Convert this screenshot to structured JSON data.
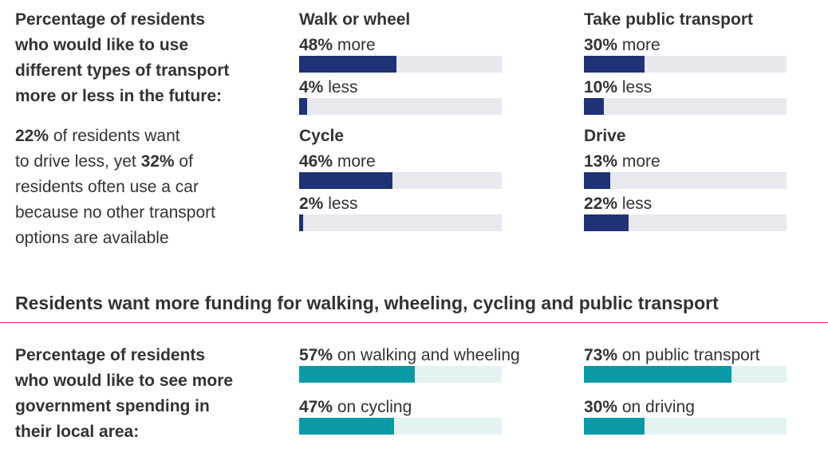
{
  "section1": {
    "heading_lines": [
      "Percentage of residents",
      "who would like to use",
      "different types of transport",
      "more or less in the future:"
    ],
    "note": {
      "pct1": "22%",
      "text1": " of residents want",
      "line2a": "to drive less, yet ",
      "pct2": "32%",
      "line2b": " of",
      "line3": "residents often use a car",
      "line4": "because no other transport",
      "line5": "options are available"
    }
  },
  "section2": {
    "title": "Residents want more funding for walking, wheeling, cycling and public transport",
    "heading_lines": [
      "Percentage of residents",
      "who would like to see more",
      "government spending in",
      "their local area:"
    ]
  },
  "colors": {
    "navy": "#1f3275",
    "navy_track": "#e8e8ef",
    "teal": "#0a9aa5",
    "teal_track": "#e3f3f4",
    "divider": "#cc2f7c"
  },
  "chart_data": [
    {
      "type": "bar",
      "groups": [
        {
          "title": "Walk or wheel",
          "bars": [
            {
              "value": 48,
              "pct": "48%",
              "text": " more"
            },
            {
              "value": 4,
              "pct": "4%",
              "text": " less"
            }
          ]
        },
        {
          "title": "Take public transport",
          "bars": [
            {
              "value": 30,
              "pct": "30%",
              "text": " more"
            },
            {
              "value": 10,
              "pct": "10%",
              "text": " less"
            }
          ]
        },
        {
          "title": "Cycle",
          "bars": [
            {
              "value": 46,
              "pct": "46%",
              "text": " more"
            },
            {
              "value": 2,
              "pct": "2%",
              "text": " less"
            }
          ]
        },
        {
          "title": "Drive",
          "bars": [
            {
              "value": 13,
              "pct": "13%",
              "text": " more"
            },
            {
              "value": 22,
              "pct": "22%",
              "text": " less"
            }
          ]
        }
      ],
      "ylim": [
        0,
        100
      ]
    },
    {
      "type": "bar",
      "bars": [
        {
          "value": 57,
          "pct": "57%",
          "text": " on walking and wheeling"
        },
        {
          "value": 73,
          "pct": "73%",
          "text": " on public transport"
        },
        {
          "value": 47,
          "pct": "47%",
          "text": " on cycling"
        },
        {
          "value": 30,
          "pct": "30%",
          "text": " on driving"
        }
      ],
      "ylim": [
        0,
        100
      ]
    }
  ]
}
